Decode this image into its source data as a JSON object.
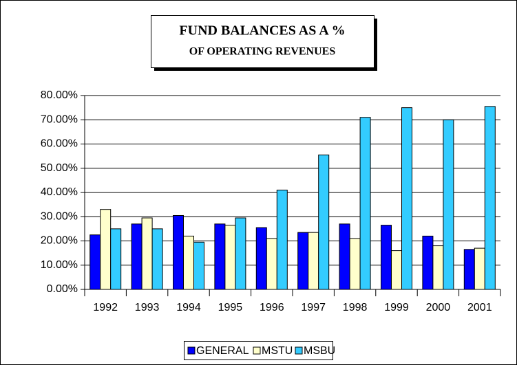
{
  "chart_data": {
    "type": "bar",
    "title": [
      "FUND BALANCES AS A %",
      "OF OPERATING REVENUES"
    ],
    "categories": [
      "1992",
      "1993",
      "1994",
      "1995",
      "1996",
      "1997",
      "1998",
      "1999",
      "2000",
      "2001"
    ],
    "series": [
      {
        "name": "GENERAL",
        "color": "#0000ff",
        "values": [
          22.5,
          27,
          30.5,
          27,
          25.5,
          23.5,
          27,
          26.5,
          22,
          16.5
        ]
      },
      {
        "name": "MSTU",
        "color": "#ffffcc",
        "values": [
          33,
          29.5,
          22,
          26.5,
          21,
          23.5,
          21,
          16,
          18,
          17
        ]
      },
      {
        "name": "MSBU",
        "color": "#33ccff",
        "values": [
          25,
          25,
          19.5,
          29.5,
          41,
          55.5,
          71,
          75,
          70,
          75.5
        ]
      }
    ],
    "ylim": [
      0,
      80
    ],
    "yticks": [
      {
        "value": 0,
        "label": "0.00%"
      },
      {
        "value": 10,
        "label": "10.00%"
      },
      {
        "value": 20,
        "label": "20.00%"
      },
      {
        "value": 30,
        "label": "30.00%"
      },
      {
        "value": 40,
        "label": "40.00%"
      },
      {
        "value": 50,
        "label": "50.00%"
      },
      {
        "value": 60,
        "label": "60.00%"
      },
      {
        "value": 70,
        "label": "70.00%"
      },
      {
        "value": 80,
        "label": "80.00%"
      }
    ],
    "grid": true,
    "legend": "bottom"
  }
}
